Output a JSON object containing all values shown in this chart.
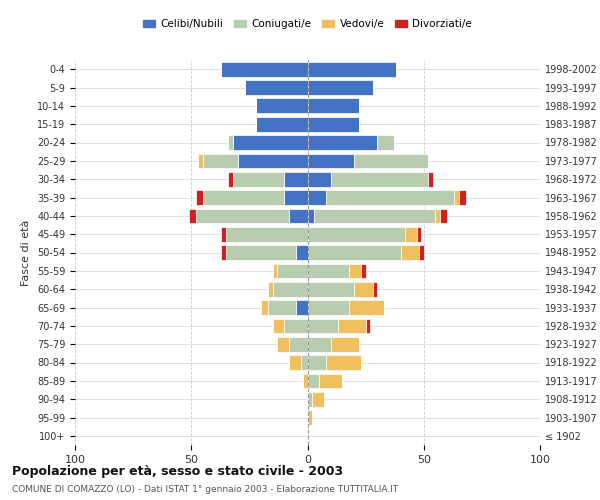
{
  "age_groups": [
    "100+",
    "95-99",
    "90-94",
    "85-89",
    "80-84",
    "75-79",
    "70-74",
    "65-69",
    "60-64",
    "55-59",
    "50-54",
    "45-49",
    "40-44",
    "35-39",
    "30-34",
    "25-29",
    "20-24",
    "15-19",
    "10-14",
    "5-9",
    "0-4"
  ],
  "birth_years": [
    "≤ 1902",
    "1903-1907",
    "1908-1912",
    "1913-1917",
    "1918-1922",
    "1923-1927",
    "1928-1932",
    "1933-1937",
    "1938-1942",
    "1943-1947",
    "1948-1952",
    "1953-1957",
    "1958-1962",
    "1963-1967",
    "1968-1972",
    "1973-1977",
    "1978-1982",
    "1983-1987",
    "1988-1992",
    "1993-1997",
    "1998-2002"
  ],
  "males": {
    "celibi": [
      0,
      0,
      0,
      0,
      0,
      0,
      0,
      5,
      0,
      0,
      5,
      0,
      8,
      10,
      10,
      30,
      32,
      22,
      22,
      27,
      37
    ],
    "coniugati": [
      0,
      0,
      0,
      0,
      3,
      8,
      10,
      12,
      15,
      13,
      30,
      35,
      40,
      35,
      22,
      15,
      2,
      0,
      0,
      0,
      0
    ],
    "vedovi": [
      0,
      0,
      0,
      2,
      5,
      5,
      5,
      3,
      2,
      2,
      0,
      0,
      0,
      0,
      0,
      2,
      0,
      0,
      0,
      0,
      0
    ],
    "divorziati": [
      0,
      0,
      0,
      0,
      0,
      0,
      0,
      0,
      0,
      0,
      2,
      2,
      3,
      3,
      2,
      0,
      0,
      0,
      0,
      0,
      0
    ]
  },
  "females": {
    "nubili": [
      0,
      0,
      0,
      0,
      0,
      0,
      0,
      0,
      0,
      0,
      0,
      0,
      3,
      8,
      10,
      20,
      30,
      22,
      22,
      28,
      38
    ],
    "coniugate": [
      0,
      0,
      2,
      5,
      8,
      10,
      13,
      18,
      20,
      18,
      40,
      42,
      52,
      55,
      42,
      32,
      7,
      0,
      0,
      0,
      0
    ],
    "vedove": [
      0,
      2,
      5,
      10,
      15,
      12,
      12,
      15,
      8,
      5,
      8,
      5,
      2,
      2,
      0,
      0,
      0,
      0,
      0,
      0,
      0
    ],
    "divorziate": [
      0,
      0,
      0,
      0,
      0,
      0,
      2,
      0,
      2,
      2,
      2,
      2,
      3,
      3,
      2,
      0,
      0,
      0,
      0,
      0,
      0
    ]
  },
  "colors": {
    "celibi_nubili": "#4472C4",
    "coniugati": "#B8CCB0",
    "vedovi": "#F0C060",
    "divorziati": "#CC2222"
  },
  "xlim": 100,
  "title": "Popolazione per età, sesso e stato civile - 2003",
  "subtitle": "COMUNE DI COMAZZO (LO) - Dati ISTAT 1° gennaio 2003 - Elaborazione TUTTITALIA.IT",
  "ylabel_left": "Fasce di età",
  "legend_labels": [
    "Celibi/Nubili",
    "Coniugati/e",
    "Vedovi/e",
    "Divorziati/e"
  ],
  "background_color": "#ffffff",
  "grid_color": "#cccccc"
}
